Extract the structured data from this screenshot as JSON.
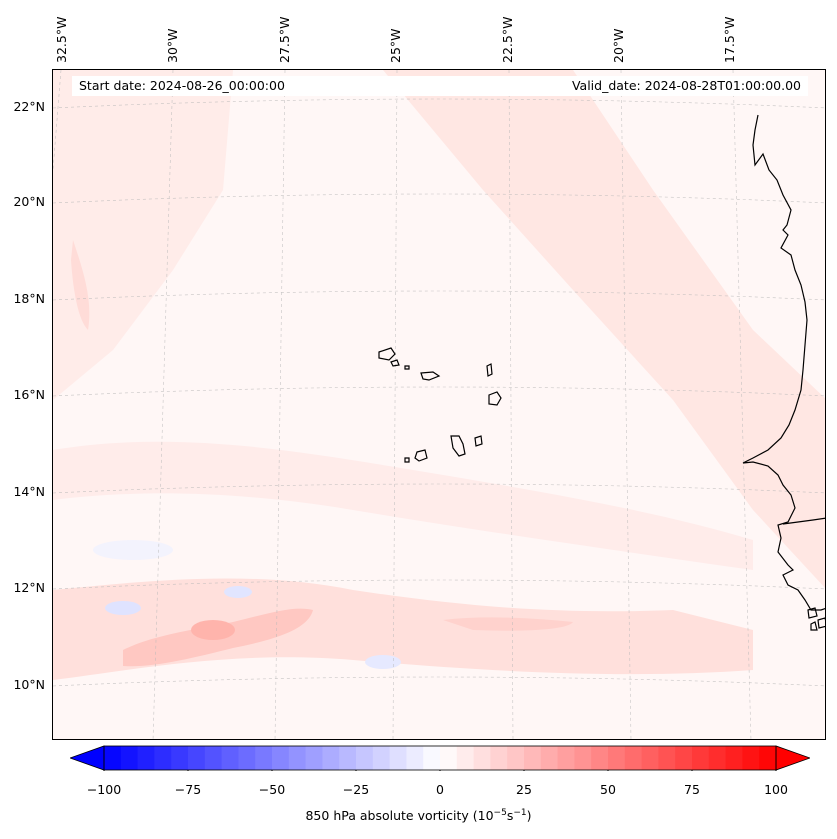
{
  "map": {
    "start_date": "Start date: 2024-08-26_00:00:00",
    "valid_date": "Valid_date: 2024-08-28T01:00:00.00",
    "lat_labels": [
      "22°N",
      "20°N",
      "18°N",
      "16°N",
      "14°N",
      "12°N",
      "10°N"
    ],
    "lon_labels": [
      "32.5°W",
      "30°W",
      "27.5°W",
      "25°W",
      "22.5°W",
      "20°W",
      "17.5°W"
    ],
    "field_colors": {
      "background": "#fff7f6",
      "light": "#ffe6e4",
      "mid": "#ffd0cc",
      "strong": "#ffb6b0",
      "neg_light": "#eef0ff",
      "neg_mid": "#d8dcff",
      "coast": "#000000"
    }
  },
  "colorbar": {
    "tick_labels": [
      "−100",
      "−75",
      "−50",
      "−25",
      "0",
      "25",
      "50",
      "75",
      "100"
    ],
    "title_main": "850 hPa absolute vorticity (10",
    "title_exp1": "−5",
    "title_mid": "s",
    "title_exp2": "−1",
    "title_end": ")",
    "colors": {
      "min": "#0000ff",
      "mid": "#ffffff",
      "max": "#ff0000"
    }
  }
}
